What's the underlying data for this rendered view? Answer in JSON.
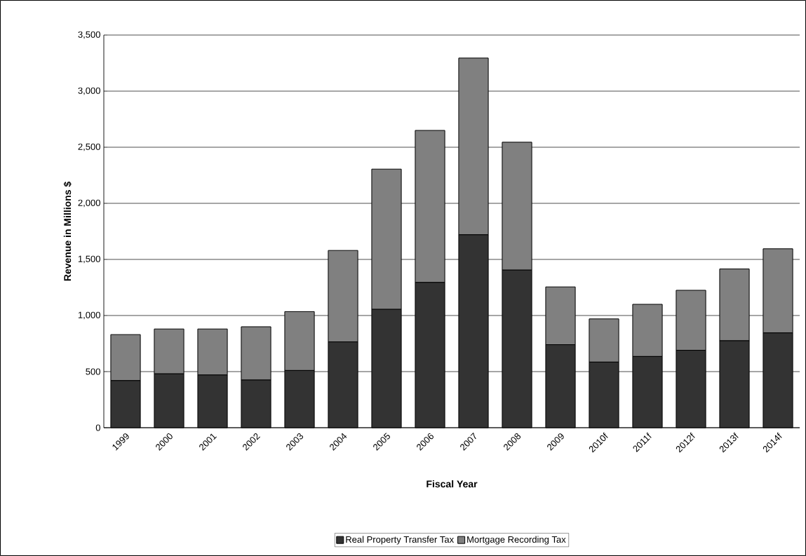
{
  "chart_data": {
    "type": "bar",
    "stacked": true,
    "xlabel": "Fiscal Year",
    "ylabel": "Revenue in Millions $",
    "categories": [
      "1999",
      "2000",
      "2001",
      "2002",
      "2003",
      "2004",
      "2005",
      "2006",
      "2007",
      "2008",
      "2009",
      "2010f",
      "2011f",
      "2012f",
      "2013f",
      "2014f"
    ],
    "series": [
      {
        "name": "Real Property Transfer Tax",
        "color": "#333333",
        "values": [
          420,
          480,
          470,
          425,
          510,
          765,
          1055,
          1295,
          1720,
          1405,
          740,
          585,
          635,
          690,
          775,
          845
        ]
      },
      {
        "name": "Mortgage Recording Tax",
        "color": "#808080",
        "values": [
          410,
          400,
          410,
          475,
          525,
          815,
          1250,
          1355,
          1575,
          1140,
          515,
          385,
          465,
          535,
          640,
          750
        ]
      }
    ],
    "ylim": [
      0,
      3500
    ],
    "yticks": [
      0,
      500,
      {
        "value": 1000,
        "label": "1,000"
      },
      {
        "value": 1500,
        "label": "1,500"
      },
      {
        "value": 2000,
        "label": "2,000"
      },
      {
        "value": 2500,
        "label": "2,500"
      },
      {
        "value": 3000,
        "label": "3,000"
      },
      {
        "value": 3500,
        "label": "3,500"
      }
    ],
    "grid": "y",
    "legend": "bottom"
  }
}
